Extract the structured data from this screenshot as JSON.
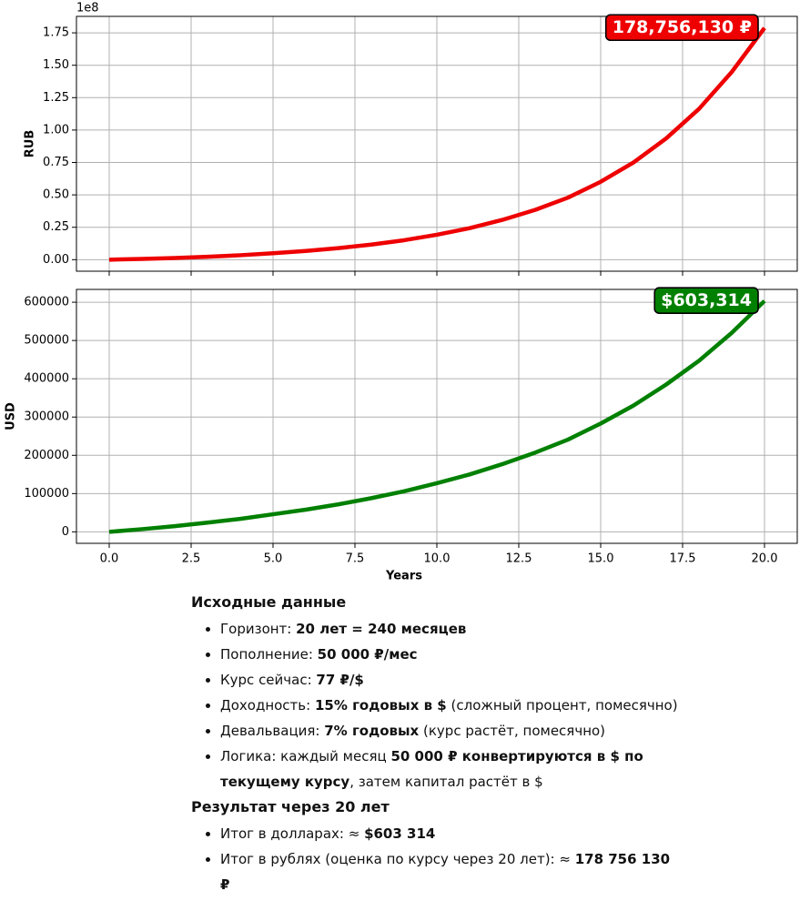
{
  "chart_data": [
    {
      "type": "line",
      "ylabel": "RUB",
      "offset_label": "1e8",
      "annotation": "178,756,130 ₽",
      "grid": true,
      "xtick_labels": false,
      "x": [
        0,
        1,
        2,
        3,
        4,
        5,
        6,
        7,
        8,
        9,
        10,
        11,
        12,
        13,
        14,
        15,
        16,
        17,
        18,
        19,
        20
      ],
      "series": [
        {
          "color": "#ee0000",
          "values": [
            0,
            577000,
            1320000,
            2260000,
            3430000,
            4970000,
            6700000,
            8900000,
            11640000,
            15000000,
            19240000,
            24300000,
            30700000,
            38400000,
            47850000,
            60100000,
            75000000,
            93600000,
            116300000,
            144800000,
            178756130
          ]
        }
      ],
      "xlim": [
        -1,
        21
      ],
      "xticks": [
        {
          "value": 0,
          "label": "0.0"
        },
        2.5,
        {
          "value": 5,
          "label": "5.0"
        },
        7.5,
        {
          "value": 10,
          "label": "10.0"
        },
        12.5,
        {
          "value": 15,
          "label": "15.0"
        },
        17.5,
        {
          "value": 20,
          "label": "20.0"
        }
      ],
      "ylim": [
        -8900000,
        187700000
      ],
      "yticks": [
        {
          "value": 0,
          "label": "0.00"
        },
        {
          "value": 25000000,
          "label": "0.25"
        },
        {
          "value": 50000000,
          "label": "0.50"
        },
        {
          "value": 75000000,
          "label": "0.75"
        },
        {
          "value": 100000000,
          "label": "1.00"
        },
        {
          "value": 125000000,
          "label": "1.25"
        },
        {
          "value": 150000000,
          "label": "1.50"
        },
        {
          "value": 175000000,
          "label": "1.75"
        }
      ]
    },
    {
      "type": "line",
      "ylabel": "USD",
      "xlabel": "Years",
      "annotation": "$603,314",
      "grid": true,
      "xtick_labels": true,
      "x": [
        0,
        1,
        2,
        3,
        4,
        5,
        6,
        7,
        8,
        9,
        10,
        11,
        12,
        13,
        14,
        15,
        16,
        17,
        18,
        19,
        20
      ],
      "series": [
        {
          "color": "#008000",
          "values": [
            0,
            7000,
            15000,
            24000,
            34000,
            46000,
            58000,
            72000,
            88000,
            106000,
            127000,
            150000,
            177000,
            207000,
            241000,
            283000,
            330000,
            385000,
            447000,
            520000,
            603314
          ]
        }
      ],
      "xlim": [
        -1,
        21
      ],
      "xticks": [
        {
          "value": 0,
          "label": "0.0"
        },
        2.5,
        {
          "value": 5,
          "label": "5.0"
        },
        7.5,
        {
          "value": 10,
          "label": "10.0"
        },
        12.5,
        {
          "value": 15,
          "label": "15.0"
        },
        17.5,
        {
          "value": 20,
          "label": "20.0"
        }
      ],
      "ylim": [
        -30000,
        633500
      ],
      "yticks": [
        0,
        100000,
        200000,
        300000,
        400000,
        500000,
        600000
      ]
    }
  ],
  "notes": {
    "sections": [
      {
        "heading": "Исходные данные",
        "items": [
          [
            {
              "text": "Горизонт: ",
              "bold": false
            },
            {
              "text": "20 лет = 240 месяцев",
              "bold": true
            }
          ],
          [
            {
              "text": "Пополнение: ",
              "bold": false
            },
            {
              "text": "50 000 ₽/мес",
              "bold": true
            }
          ],
          [
            {
              "text": "Курс сейчас: ",
              "bold": false
            },
            {
              "text": "77 ₽/$",
              "bold": true
            }
          ],
          [
            {
              "text": "Доходность: ",
              "bold": false
            },
            {
              "text": "15% годовых в $",
              "bold": true
            },
            {
              "text": " (сложный процент, помесячно)",
              "bold": false
            }
          ],
          [
            {
              "text": "Девальвация: ",
              "bold": false
            },
            {
              "text": "7% годовых",
              "bold": true
            },
            {
              "text": " (курс растёт, помесячно)",
              "bold": false
            }
          ],
          [
            {
              "text": "Логика: каждый месяц ",
              "bold": false
            },
            {
              "text": "50 000 ₽ конвертируются в $ по текущему курсу",
              "bold": true
            },
            {
              "text": ", затем капитал растёт в $",
              "bold": false
            }
          ]
        ]
      },
      {
        "heading": "Результат через 20 лет",
        "items": [
          [
            {
              "text": "Итог в долларах: ≈ ",
              "bold": false
            },
            {
              "text": "$603 314",
              "bold": true
            }
          ],
          [
            {
              "text": "Итог в рублях (оценка по курсу через 20 лет): ≈ ",
              "bold": false
            },
            {
              "text": "178 756 130 ₽",
              "bold": true
            }
          ]
        ]
      }
    ]
  }
}
